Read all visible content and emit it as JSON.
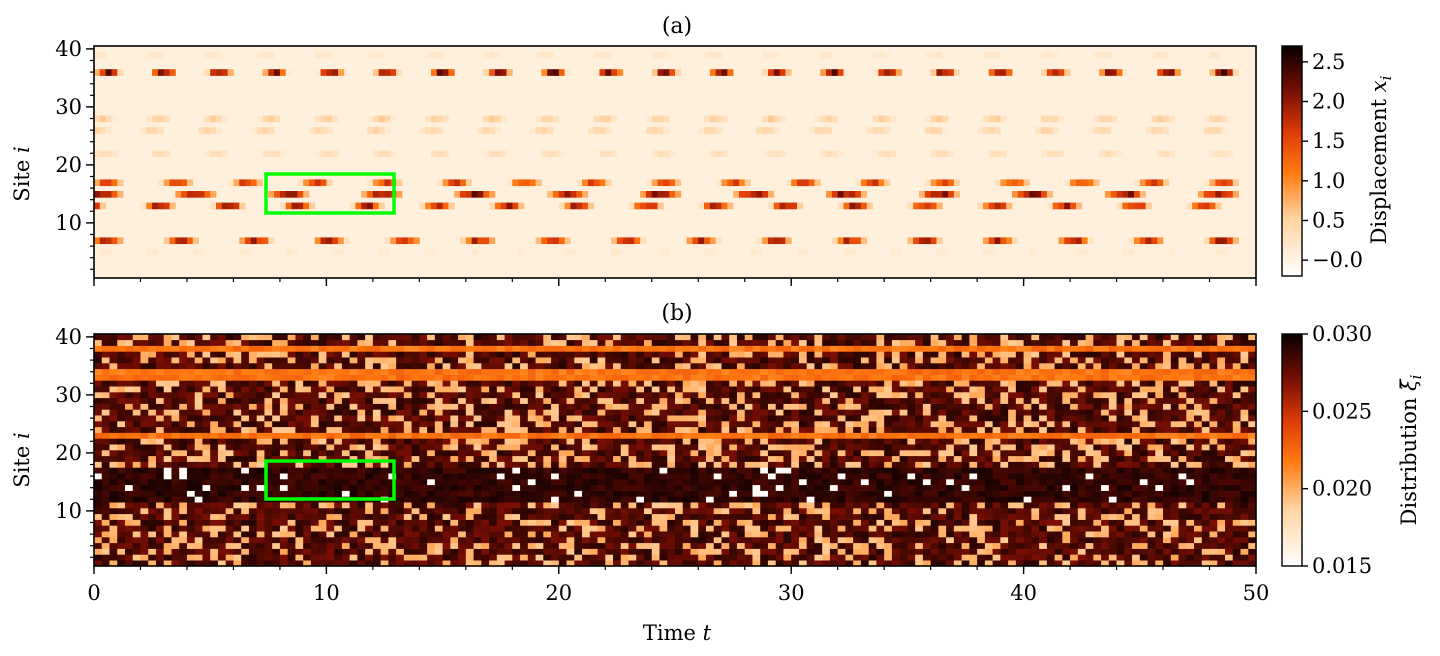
{
  "chart_data": [
    {
      "type": "heatmap",
      "panel_title": "(a)",
      "xlabel": "",
      "ylabel": "Site i",
      "ylabel_text": "Site ",
      "ylabel_var": "i",
      "xlim": [
        0,
        50
      ],
      "ylim": [
        0.5,
        40.5
      ],
      "xticks": [
        0,
        10,
        20,
        30,
        40,
        50
      ],
      "x_ticklabels_shown": false,
      "yticks": [
        10,
        20,
        30,
        40
      ],
      "ytick_labels": [
        "10",
        "20",
        "30",
        "40"
      ],
      "colormap": "gist_heat_r",
      "colorbar": {
        "label": "Displacement x_i",
        "label_text": "Displacement ",
        "label_var": "x",
        "label_sub": "i",
        "range": [
          -0.2,
          2.7
        ],
        "ticks": [
          -0.0,
          0.5,
          1.0,
          1.5,
          2.0,
          2.5
        ],
        "tick_labels": [
          "−0.0",
          "0.5",
          "1.0",
          "1.5",
          "2.0",
          "2.5"
        ]
      },
      "highlight_box": {
        "t": [
          7.5,
          13
        ],
        "site": [
          11.5,
          18.5
        ],
        "color": "#00ff00"
      },
      "bands": [
        {
          "site": 36,
          "amplitude": 2.5,
          "period": 2.4,
          "phase": 0.0
        },
        {
          "site": 28,
          "amplitude": 0.6,
          "period": 2.4,
          "phase": 0.6
        },
        {
          "site": 26,
          "amplitude": 0.55,
          "period": 2.4,
          "phase": 1.2
        },
        {
          "site": 22,
          "amplitude": 0.4,
          "period": 2.4,
          "phase": 0.3
        },
        {
          "site": 39,
          "amplitude": 0.25,
          "period": 2.4,
          "phase": 0.9
        },
        {
          "site": 17,
          "amplitude": 1.8,
          "period": 3.0,
          "phase": 0.4
        },
        {
          "site": 15,
          "amplitude": 2.4,
          "period": 4.0,
          "phase": 1.0
        },
        {
          "site": 13,
          "amplitude": 2.2,
          "period": 3.0,
          "phase": 2.0
        },
        {
          "site": 7,
          "amplitude": 2.1,
          "period": 3.2,
          "phase": 0.5
        },
        {
          "site": 5,
          "amplitude": 0.2,
          "period": 2.0,
          "phase": 0.2
        }
      ]
    },
    {
      "type": "heatmap",
      "panel_title": "(b)",
      "xlabel": "Time t",
      "xlabel_text": "Time ",
      "xlabel_var": "t",
      "ylabel": "Site i",
      "ylabel_text": "Site ",
      "ylabel_var": "i",
      "xlim": [
        0,
        50
      ],
      "ylim": [
        0.5,
        40.5
      ],
      "xticks": [
        0,
        10,
        20,
        30,
        40,
        50
      ],
      "xtick_labels": [
        "0",
        "10",
        "20",
        "30",
        "40",
        "50"
      ],
      "yticks": [
        10,
        20,
        30,
        40
      ],
      "ytick_labels": [
        "10",
        "20",
        "30",
        "40"
      ],
      "colormap": "gist_heat_r",
      "colorbar": {
        "label": "Distribution ξ̄_i",
        "label_text": "Distribution ",
        "label_var": "ξ̄",
        "label_sub": "i",
        "range": [
          0.015,
          0.03
        ],
        "ticks": [
          0.015,
          0.02,
          0.025,
          0.03
        ],
        "tick_labels": [
          "0.015",
          "0.020",
          "0.025",
          "0.030"
        ]
      },
      "highlight_box": {
        "t": [
          7.5,
          13
        ],
        "site": [
          11.5,
          18.5
        ],
        "color": "#00ff00"
      },
      "orange_rows": [
        33,
        34,
        23,
        38
      ],
      "dense_dark_rows": [
        12,
        13,
        14,
        15,
        16,
        17
      ]
    }
  ]
}
